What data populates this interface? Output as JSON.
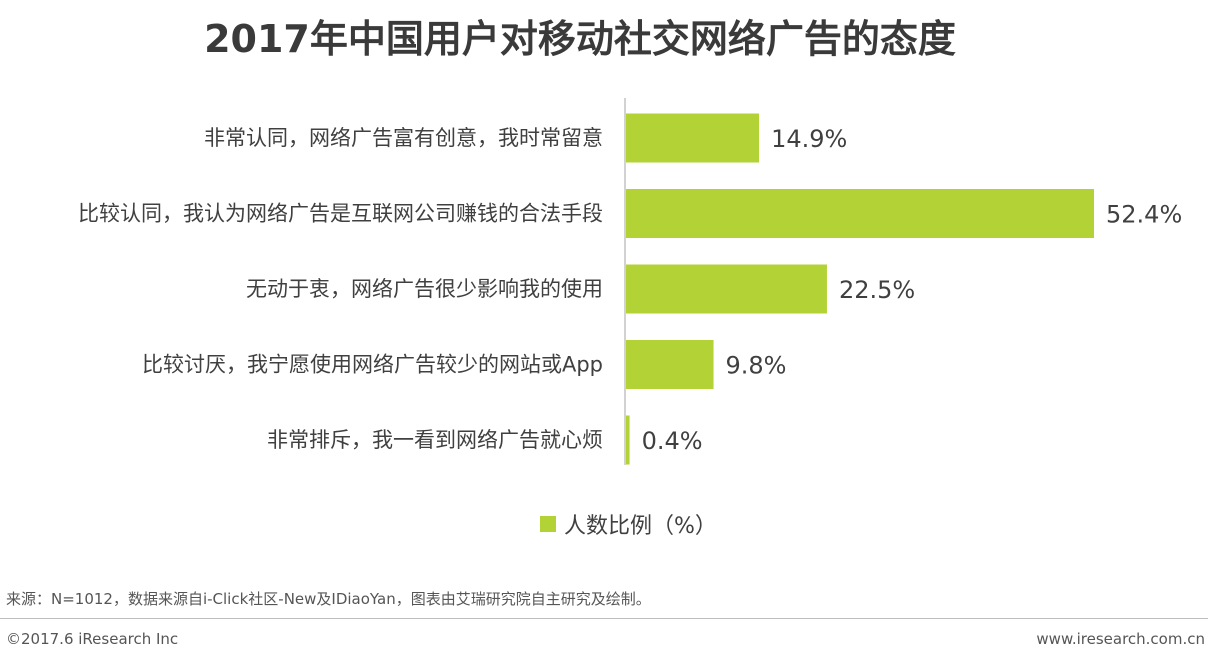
{
  "title": "2017年中国用户对移动社交网络广告的态度",
  "chart_data": {
    "type": "bar",
    "orientation": "horizontal",
    "categories": [
      "非常认同，网络广告富有创意，我时常留意",
      "比较认同，我认为网络广告是互联网公司赚钱的合法手段",
      "无动于衷，网络广告很少影响我的使用",
      "比较讨厌，我宁愿使用网络广告较少的网站或App",
      "非常排斥，我一看到网络广告就心烦"
    ],
    "series": [
      {
        "name": "人数比例（%）",
        "values": [
          14.9,
          52.4,
          22.5,
          9.8,
          0.4
        ],
        "color": "#b3d235"
      }
    ],
    "value_labels": [
      "14.9%",
      "52.4%",
      "22.5%",
      "9.8%",
      "0.4%"
    ],
    "xlim": [
      0,
      52.4
    ],
    "grid": false,
    "legend_position": "bottom"
  },
  "source": "来源：N=1012，数据来源自i-Click社区-New及IDiaoYan，图表由艾瑞研究院自主研究及绘制。",
  "footer": {
    "copyright": "©2017.6 iResearch Inc",
    "website": "www.iresearch.com.cn"
  }
}
